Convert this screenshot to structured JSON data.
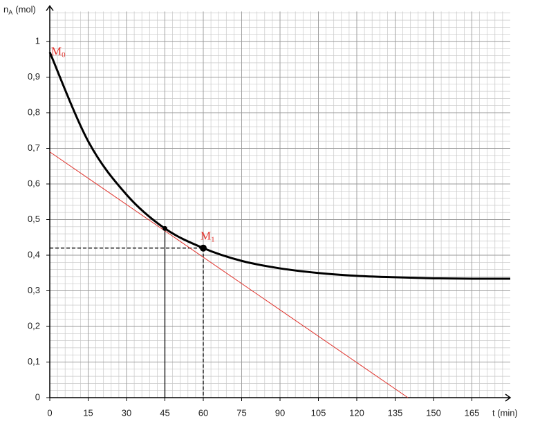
{
  "chart_data": {
    "type": "line",
    "x_label": "t (min)",
    "y_label": {
      "main": "n",
      "sub": "A",
      "unit": "(mol)"
    },
    "xlim": [
      0,
      180
    ],
    "ylim": [
      0,
      1.1
    ],
    "xticks": [
      0,
      15,
      30,
      45,
      60,
      75,
      90,
      105,
      120,
      135,
      150,
      165
    ],
    "yticks": [
      0,
      {
        "value": 0.1,
        "label": "0,1"
      },
      {
        "value": 0.2,
        "label": "0,2"
      },
      {
        "value": 0.3,
        "label": "0,3"
      },
      {
        "value": 0.4,
        "label": "0,4"
      },
      {
        "value": 0.5,
        "label": "0,5"
      },
      {
        "value": 0.6,
        "label": "0,6"
      },
      {
        "value": 0.7,
        "label": "0,7"
      },
      {
        "value": 0.8,
        "label": "0,8"
      },
      {
        "value": 0.9,
        "label": "0,9"
      },
      1
    ],
    "grid": true,
    "series": [
      {
        "color": "#000000",
        "width": 3,
        "x": [
          0,
          15,
          30,
          45,
          60,
          75,
          90,
          105,
          120,
          135,
          150,
          165,
          180
        ],
        "values": [
          0.97,
          0.72,
          0.57,
          0.475,
          0.42,
          0.384,
          0.363,
          0.35,
          0.342,
          0.338,
          0.335,
          0.334,
          0.334
        ]
      },
      {
        "color": "#e0302a",
        "width": 1,
        "x": [
          0,
          140
        ],
        "values": [
          0.69,
          0
        ]
      }
    ],
    "points": [
      {
        "label": "M",
        "sub": "0",
        "x": 0,
        "y": 0.97,
        "marker": false,
        "guide": "none",
        "color": "#e0302a"
      },
      {
        "x": 45,
        "y": 0.475,
        "marker": true,
        "guide": "solid",
        "color": "#000000"
      },
      {
        "label": "M",
        "sub": "1",
        "x": 60,
        "y": 0.42,
        "marker": true,
        "guide": "dashed",
        "color": "#e0302a"
      }
    ]
  }
}
